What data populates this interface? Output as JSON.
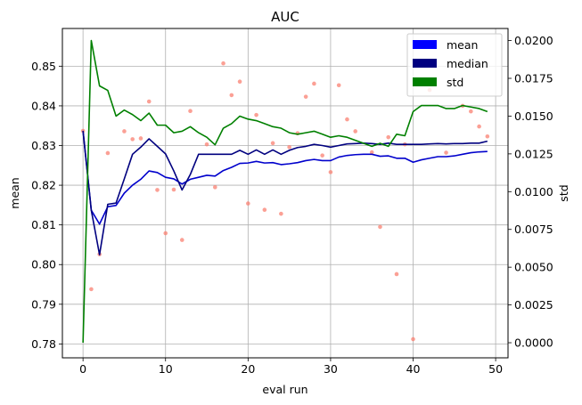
{
  "chart_data": {
    "type": "line",
    "title": "AUC",
    "xlabel": "eval run",
    "ylabel": "mean",
    "y2label": "std",
    "xlim": [
      -2.5,
      51.5
    ],
    "ylim": [
      0.7765,
      0.8595
    ],
    "y2lim": [
      -0.001,
      0.0208
    ],
    "xticks": [
      "0",
      "10",
      "20",
      "30",
      "40",
      "50"
    ],
    "yticks": [
      "0.78",
      "0.79",
      "0.80",
      "0.81",
      "0.82",
      "0.83",
      "0.84",
      "0.85"
    ],
    "y2ticks": [
      "0.0000",
      "0.0025",
      "0.0050",
      "0.0075",
      "0.0100",
      "0.0125",
      "0.0150",
      "0.0175",
      "0.0200"
    ],
    "grid": true,
    "legend_position": "top-right",
    "colors": {
      "mean": "#0000cc",
      "median": "#00007f",
      "std": "#008000",
      "points": "#fa8072"
    },
    "legend": [
      {
        "label": "mean",
        "color": "#0000ff"
      },
      {
        "label": "median",
        "color": "#000080"
      },
      {
        "label": "std",
        "color": "#008000"
      }
    ],
    "x": [
      0,
      1,
      2,
      3,
      4,
      5,
      6,
      7,
      8,
      9,
      10,
      11,
      12,
      13,
      14,
      15,
      16,
      17,
      18,
      19,
      20,
      21,
      22,
      23,
      24,
      25,
      26,
      27,
      28,
      29,
      30,
      31,
      32,
      33,
      34,
      35,
      36,
      37,
      38,
      39,
      40,
      41,
      42,
      43,
      44,
      45,
      46,
      47,
      48,
      49
    ],
    "series": [
      {
        "name": "mean",
        "axis": "left",
        "values": [
          0.8337,
          0.8137,
          0.8102,
          0.8146,
          0.8149,
          0.818,
          0.82,
          0.8215,
          0.8236,
          0.8232,
          0.822,
          0.8216,
          0.8203,
          0.8215,
          0.822,
          0.8225,
          0.8223,
          0.8237,
          0.8245,
          0.8255,
          0.8256,
          0.826,
          0.8256,
          0.8257,
          0.8252,
          0.8254,
          0.8257,
          0.8262,
          0.8265,
          0.8262,
          0.8262,
          0.8271,
          0.8275,
          0.8277,
          0.8278,
          0.8278,
          0.8273,
          0.8274,
          0.8268,
          0.8268,
          0.8258,
          0.8264,
          0.8268,
          0.8272,
          0.8272,
          0.8274,
          0.8278,
          0.8282,
          0.8284,
          0.8285
        ]
      },
      {
        "name": "median",
        "axis": "left",
        "values": [
          0.8337,
          0.8137,
          0.8025,
          0.8152,
          0.8155,
          0.8216,
          0.8278,
          0.8296,
          0.8317,
          0.8298,
          0.8279,
          0.8236,
          0.8188,
          0.8227,
          0.8278,
          0.8278,
          0.8278,
          0.8278,
          0.8278,
          0.8288,
          0.8278,
          0.8289,
          0.8278,
          0.8289,
          0.8278,
          0.8288,
          0.8295,
          0.8298,
          0.8303,
          0.83,
          0.8296,
          0.83,
          0.8304,
          0.8305,
          0.8306,
          0.8305,
          0.8303,
          0.8306,
          0.8303,
          0.8303,
          0.8303,
          0.8303,
          0.8304,
          0.8305,
          0.8304,
          0.8305,
          0.8305,
          0.8306,
          0.8306,
          0.8311
        ]
      },
      {
        "name": "std",
        "axis": "right",
        "values": [
          0.0,
          0.02,
          0.017,
          0.0167,
          0.015,
          0.0154,
          0.0151,
          0.0147,
          0.0152,
          0.0144,
          0.0144,
          0.0139,
          0.014,
          0.0143,
          0.0139,
          0.0136,
          0.0131,
          0.0142,
          0.0145,
          0.015,
          0.0148,
          0.0147,
          0.0145,
          0.0143,
          0.0142,
          0.0139,
          0.0138,
          0.0139,
          0.014,
          0.0138,
          0.0136,
          0.0137,
          0.0136,
          0.0134,
          0.0132,
          0.013,
          0.0132,
          0.013,
          0.0138,
          0.0137,
          0.0153,
          0.0157,
          0.0157,
          0.0157,
          0.0155,
          0.0155,
          0.0157,
          0.0156,
          0.0155,
          0.0153
        ]
      }
    ],
    "points": {
      "axis": "left",
      "values": [
        0.8337,
        0.7938,
        0.8026,
        0.8281,
        null,
        0.8336,
        0.8316,
        0.8318,
        0.8411,
        0.8188,
        0.8079,
        0.8189,
        0.8062,
        0.8387,
        null,
        0.8303,
        0.8195,
        0.8507,
        0.8427,
        0.8461,
        0.8154,
        0.8377,
        0.8138,
        0.8306,
        0.8128,
        0.8296,
        0.8331,
        0.8423,
        0.8456,
        0.8275,
        0.8233,
        0.8452,
        0.8366,
        0.8336,
        null,
        0.8283,
        0.8095,
        0.8321,
        0.7976,
        0.8303,
        0.7812,
        null,
        0.844,
        null,
        0.8282,
        null,
        0.84,
        0.8386,
        0.8348,
        0.8323
      ]
    }
  }
}
